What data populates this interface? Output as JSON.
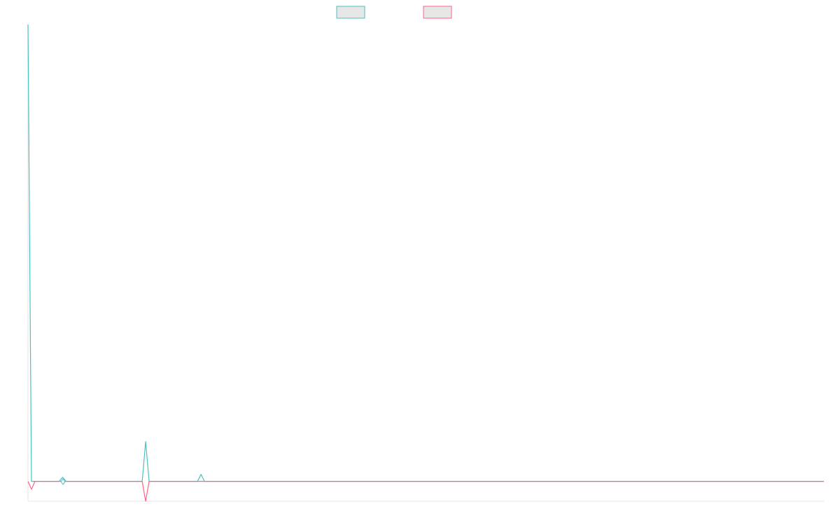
{
  "chart_data": {
    "type": "line",
    "title": "",
    "xlabel": "",
    "ylabel": "",
    "grid": false,
    "legend": {
      "placement": "top-center",
      "entries": [
        {
          "label": "",
          "color": "#4bc0c0",
          "fill": "#e6e6e6"
        },
        {
          "label": "",
          "color": "#ff6384",
          "fill": "#e6e6e6"
        }
      ]
    },
    "x_count": 231,
    "ylim": [
      -1,
      23
    ],
    "series": [
      {
        "color": "#4bc0c0",
        "points": [
          [
            0,
            23
          ],
          [
            1,
            0
          ],
          [
            10,
            0.2
          ],
          [
            34,
            2
          ],
          [
            50,
            0.35
          ]
        ],
        "baseline": 0
      },
      {
        "color": "#ff6384",
        "points": [
          [
            1,
            -0.4
          ],
          [
            34,
            -1
          ]
        ],
        "baseline": 0
      }
    ]
  }
}
